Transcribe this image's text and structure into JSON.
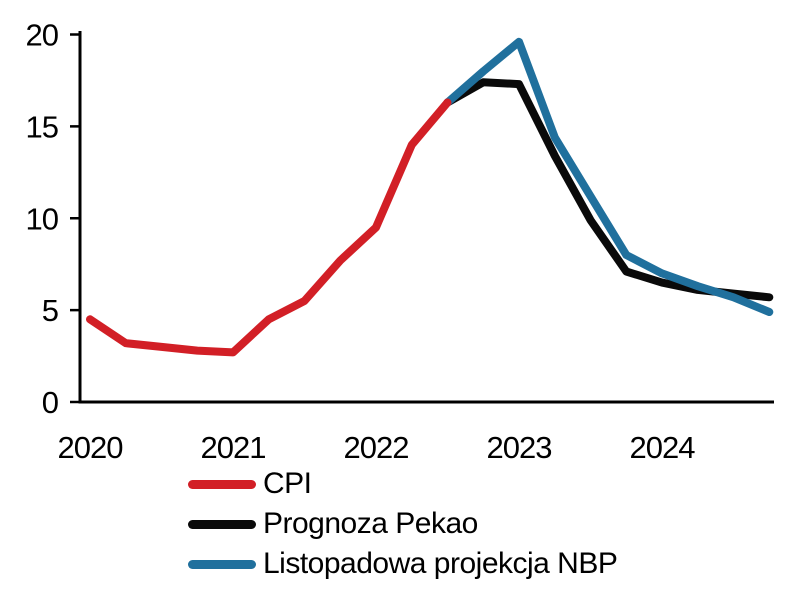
{
  "chart_data": {
    "type": "line",
    "title": "",
    "xlabel": "",
    "ylabel": "",
    "x_unit": "quarter",
    "x_start": "2020Q1",
    "xtick_labels": [
      "2020",
      "2021",
      "2022",
      "2023",
      "2024"
    ],
    "ylim": [
      0,
      20
    ],
    "yticks": [
      0,
      5,
      10,
      15,
      20
    ],
    "grid": false,
    "legend_position": "bottom-left",
    "series": [
      {
        "name": "CPI",
        "color": "#d21f26",
        "start_quarter_index": 0,
        "quarters": [
          "2020Q1",
          "2020Q2",
          "2020Q3",
          "2020Q4",
          "2021Q1",
          "2021Q2",
          "2021Q3",
          "2021Q4",
          "2022Q1",
          "2022Q2",
          "2022Q3"
        ],
        "values": [
          4.5,
          3.2,
          3.0,
          2.8,
          2.7,
          4.5,
          5.5,
          7.7,
          9.5,
          14.0,
          16.3
        ]
      },
      {
        "name": "Prognoza Pekao",
        "color": "#0a0a0a",
        "start_quarter_index": 10,
        "quarters": [
          "2022Q3",
          "2022Q4",
          "2023Q1",
          "2023Q2",
          "2023Q3",
          "2023Q4",
          "2024Q1",
          "2024Q2",
          "2024Q3",
          "2024Q4"
        ],
        "values": [
          16.3,
          17.4,
          17.3,
          13.4,
          9.9,
          7.1,
          6.5,
          6.1,
          5.9,
          5.7
        ]
      },
      {
        "name": "Listopadowa projekcja NBP",
        "color": "#20709d",
        "start_quarter_index": 10,
        "quarters": [
          "2022Q3",
          "2022Q4",
          "2023Q1",
          "2023Q2",
          "2023Q3",
          "2023Q4",
          "2024Q1",
          "2024Q2",
          "2024Q3",
          "2024Q4"
        ],
        "values": [
          16.3,
          18.0,
          19.6,
          14.4,
          11.2,
          8.0,
          7.0,
          6.3,
          5.7,
          4.9
        ]
      }
    ]
  },
  "legend": {
    "items": [
      "CPI",
      "Prognoza Pekao",
      "Listopadowa projekcja NBP"
    ]
  }
}
